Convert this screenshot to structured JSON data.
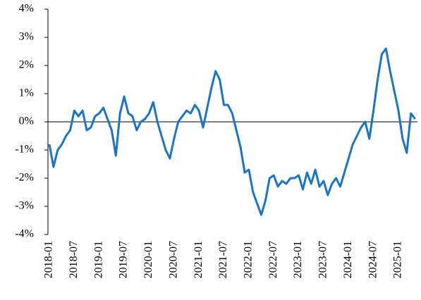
{
  "chart_data": {
    "type": "line",
    "categories": [
      "2018-01",
      null,
      null,
      null,
      null,
      null,
      "2018-07",
      null,
      null,
      null,
      null,
      null,
      "2019-01",
      null,
      null,
      null,
      null,
      null,
      "2019-07",
      null,
      null,
      null,
      null,
      null,
      "2020-01",
      null,
      null,
      null,
      null,
      null,
      "2020-07",
      null,
      null,
      null,
      null,
      null,
      "2021-01",
      null,
      null,
      null,
      null,
      null,
      "2021-07",
      null,
      null,
      null,
      null,
      null,
      "2022-01",
      null,
      null,
      null,
      null,
      null,
      "2022-07",
      null,
      null,
      null,
      null,
      null,
      "2023-01",
      null,
      null,
      null,
      null,
      null,
      "2023-07",
      null,
      null,
      null,
      null,
      null,
      "2024-01",
      null,
      null,
      null,
      null,
      null,
      "2024-07",
      null,
      null,
      null,
      null,
      null,
      "2025-01",
      null,
      null,
      null,
      null
    ],
    "series": [
      {
        "color": "#1a75c4",
        "values": [
          -0.8,
          -1.6,
          -1.0,
          -0.8,
          -0.5,
          -0.3,
          0.4,
          0.2,
          0.4,
          -0.3,
          -0.2,
          0.2,
          0.3,
          0.5,
          0.1,
          -0.3,
          -1.2,
          0.3,
          0.9,
          0.3,
          0.2,
          -0.3,
          0.0,
          0.1,
          0.3,
          0.7,
          0.0,
          -0.5,
          -1.0,
          -1.3,
          -0.6,
          0.0,
          0.2,
          0.4,
          0.3,
          0.6,
          0.4,
          -0.2,
          0.5,
          1.2,
          1.8,
          1.5,
          0.6,
          0.6,
          0.3,
          -0.3,
          -0.9,
          -1.8,
          -1.7,
          -2.5,
          -2.9,
          -3.3,
          -2.8,
          -2.0,
          -1.9,
          -2.3,
          -2.1,
          -2.2,
          -2.0,
          -2.0,
          -1.9,
          -2.4,
          -1.8,
          -2.2,
          -1.7,
          -2.3,
          -2.1,
          -2.6,
          -2.2,
          -2.0,
          -2.3,
          -1.8,
          -1.3,
          -0.8,
          -0.5,
          -0.2,
          0.0,
          -0.6,
          0.4,
          1.5,
          2.4,
          2.6,
          1.8,
          1.1,
          0.4,
          -0.6,
          -1.1,
          0.3,
          0.1
        ]
      }
    ],
    "ylim": [
      -4,
      4
    ],
    "yticks": [
      {
        "value": 4,
        "label": "4%"
      },
      {
        "value": 3,
        "label": "3%"
      },
      {
        "value": 2,
        "label": "2%"
      },
      {
        "value": 1,
        "label": "1%"
      },
      {
        "value": 0,
        "label": "0%"
      },
      {
        "value": -1,
        "label": "-1%"
      },
      {
        "value": -2,
        "label": "-2%"
      },
      {
        "value": -3,
        "label": "-3%"
      },
      {
        "value": -4,
        "label": "-4%"
      }
    ],
    "grid": false
  }
}
